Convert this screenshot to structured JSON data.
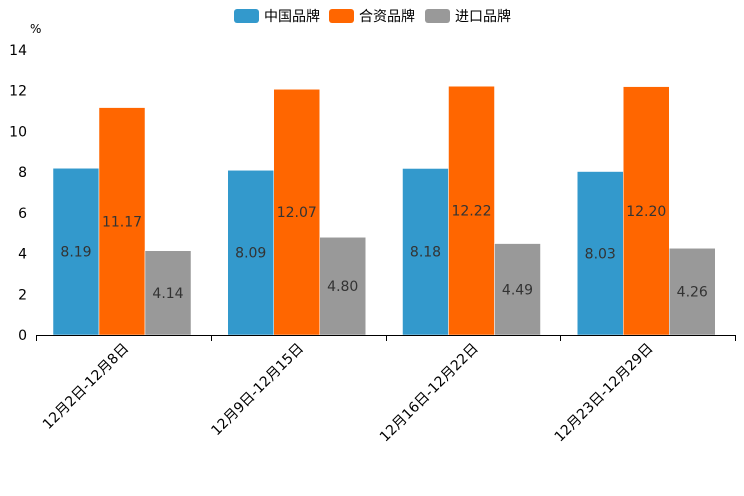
{
  "chart_data": {
    "type": "bar",
    "unit": "%",
    "categories": [
      "12月2日-12月8日",
      "12月9日-12月15日",
      "12月16日-12月22日",
      "12月23日-12月29日"
    ],
    "series": [
      {
        "name": "中国品牌",
        "color": "#3399cc",
        "values": [
          8.19,
          8.09,
          8.18,
          8.03
        ],
        "labels": [
          "8.19",
          "8.09",
          "8.18",
          "8.03"
        ]
      },
      {
        "name": "合资品牌",
        "color": "#ff6600",
        "values": [
          11.17,
          12.07,
          12.22,
          12.2
        ],
        "labels": [
          "11.17",
          "12.07",
          "12.22",
          "12.20"
        ]
      },
      {
        "name": "进口品牌",
        "color": "#999999",
        "values": [
          4.14,
          4.8,
          4.49,
          4.26
        ],
        "labels": [
          "4.14",
          "4.80",
          "4.49",
          "4.26"
        ]
      }
    ],
    "ylim": [
      0,
      14
    ],
    "yticks": [
      "0",
      "2",
      "4",
      "6",
      "8",
      "10",
      "12",
      "14"
    ],
    "legend_position": "top-center",
    "grid": false
  }
}
